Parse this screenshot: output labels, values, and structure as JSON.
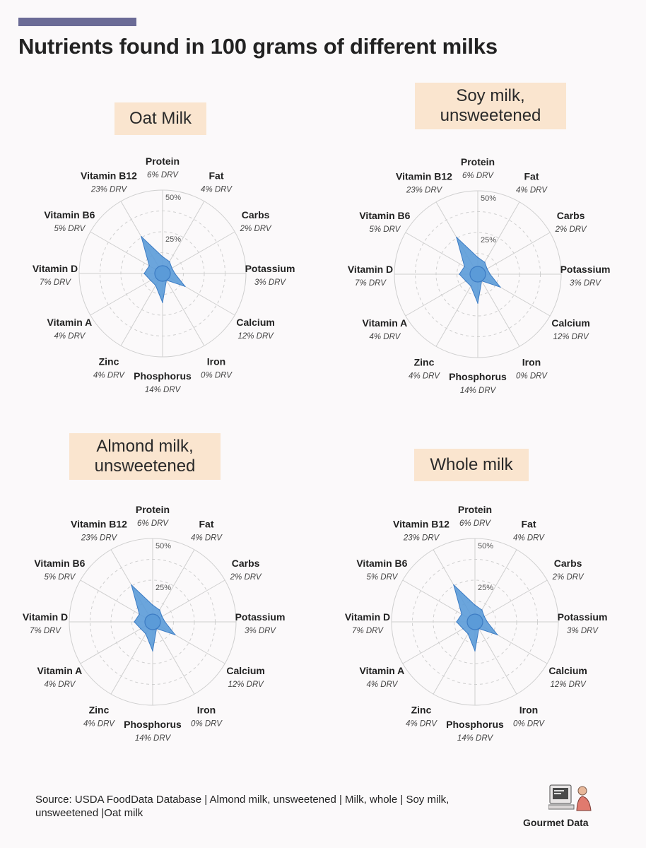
{
  "title": "Nutrients found in 100 grams of different milks",
  "source": "Source: USDA FoodData Database | Almond milk, unsweetened | Milk, whole | Soy milk, unsweetened |Oat milk",
  "brand": "Gourmet Data",
  "colors": {
    "accent_bar": "#6b6b96",
    "title_box": "#fae5cf",
    "fill": "#5b9bd8",
    "stroke": "#3d7cc4",
    "grid": "#cfcfcf",
    "background": "#fbf9fa"
  },
  "icons": {
    "brand": "computer-person-icon"
  },
  "chart_data": [
    {
      "type": "radar",
      "title": "Oat Milk",
      "rlim": [
        0,
        50
      ],
      "ring_labels": [
        "25%",
        "50%"
      ],
      "axes": [
        {
          "name": "Protein",
          "drv": "6% DRV",
          "value": 6
        },
        {
          "name": "Fat",
          "drv": "4% DRV",
          "value": 4
        },
        {
          "name": "Carbs",
          "drv": "2% DRV",
          "value": 2
        },
        {
          "name": "Potassium",
          "drv": "3% DRV",
          "value": 3
        },
        {
          "name": "Calcium",
          "drv": "12% DRV",
          "value": 12
        },
        {
          "name": "Iron",
          "drv": "0% DRV",
          "value": 0
        },
        {
          "name": "Phosphorus",
          "drv": "14% DRV",
          "value": 14
        },
        {
          "name": "Zinc",
          "drv": "4% DRV",
          "value": 4
        },
        {
          "name": "Vitamin A",
          "drv": "4% DRV",
          "value": 4
        },
        {
          "name": "Vitamin D",
          "drv": "7% DRV",
          "value": 7
        },
        {
          "name": "Vitamin B6",
          "drv": "5% DRV",
          "value": 5
        },
        {
          "name": "Vitamin B12",
          "drv": "23% DRV",
          "value": 23
        }
      ]
    },
    {
      "type": "radar",
      "title": "Soy milk,\nunsweetened",
      "rlim": [
        0,
        50
      ],
      "ring_labels": [
        "25%",
        "50%"
      ],
      "axes": [
        {
          "name": "Protein",
          "drv": "6% DRV",
          "value": 6
        },
        {
          "name": "Fat",
          "drv": "4% DRV",
          "value": 4
        },
        {
          "name": "Carbs",
          "drv": "2% DRV",
          "value": 2
        },
        {
          "name": "Potassium",
          "drv": "3% DRV",
          "value": 3
        },
        {
          "name": "Calcium",
          "drv": "12% DRV",
          "value": 12
        },
        {
          "name": "Iron",
          "drv": "0% DRV",
          "value": 0
        },
        {
          "name": "Phosphorus",
          "drv": "14% DRV",
          "value": 14
        },
        {
          "name": "Zinc",
          "drv": "4% DRV",
          "value": 4
        },
        {
          "name": "Vitamin A",
          "drv": "4% DRV",
          "value": 4
        },
        {
          "name": "Vitamin D",
          "drv": "7% DRV",
          "value": 7
        },
        {
          "name": "Vitamin B6",
          "drv": "5% DRV",
          "value": 5
        },
        {
          "name": "Vitamin B12",
          "drv": "23% DRV",
          "value": 23
        }
      ]
    },
    {
      "type": "radar",
      "title": "Almond milk,\nunsweetened",
      "rlim": [
        0,
        50
      ],
      "ring_labels": [
        "25%",
        "50%"
      ],
      "axes": [
        {
          "name": "Protein",
          "drv": "6% DRV",
          "value": 6
        },
        {
          "name": "Fat",
          "drv": "4% DRV",
          "value": 4
        },
        {
          "name": "Carbs",
          "drv": "2% DRV",
          "value": 2
        },
        {
          "name": "Potassium",
          "drv": "3% DRV",
          "value": 3
        },
        {
          "name": "Calcium",
          "drv": "12% DRV",
          "value": 12
        },
        {
          "name": "Iron",
          "drv": "0% DRV",
          "value": 0
        },
        {
          "name": "Phosphorus",
          "drv": "14% DRV",
          "value": 14
        },
        {
          "name": "Zinc",
          "drv": "4% DRV",
          "value": 4
        },
        {
          "name": "Vitamin A",
          "drv": "4% DRV",
          "value": 4
        },
        {
          "name": "Vitamin D",
          "drv": "7% DRV",
          "value": 7
        },
        {
          "name": "Vitamin B6",
          "drv": "5% DRV",
          "value": 5
        },
        {
          "name": "Vitamin B12",
          "drv": "23% DRV",
          "value": 23
        }
      ]
    },
    {
      "type": "radar",
      "title": "Whole milk",
      "rlim": [
        0,
        50
      ],
      "ring_labels": [
        "25%",
        "50%"
      ],
      "axes": [
        {
          "name": "Protein",
          "drv": "6% DRV",
          "value": 6
        },
        {
          "name": "Fat",
          "drv": "4% DRV",
          "value": 4
        },
        {
          "name": "Carbs",
          "drv": "2% DRV",
          "value": 2
        },
        {
          "name": "Potassium",
          "drv": "3% DRV",
          "value": 3
        },
        {
          "name": "Calcium",
          "drv": "12% DRV",
          "value": 12
        },
        {
          "name": "Iron",
          "drv": "0% DRV",
          "value": 0
        },
        {
          "name": "Phosphorus",
          "drv": "14% DRV",
          "value": 14
        },
        {
          "name": "Zinc",
          "drv": "4% DRV",
          "value": 4
        },
        {
          "name": "Vitamin A",
          "drv": "4% DRV",
          "value": 4
        },
        {
          "name": "Vitamin D",
          "drv": "7% DRV",
          "value": 7
        },
        {
          "name": "Vitamin B6",
          "drv": "5% DRV",
          "value": 5
        },
        {
          "name": "Vitamin B12",
          "drv": "23% DRV",
          "value": 23
        }
      ]
    }
  ]
}
